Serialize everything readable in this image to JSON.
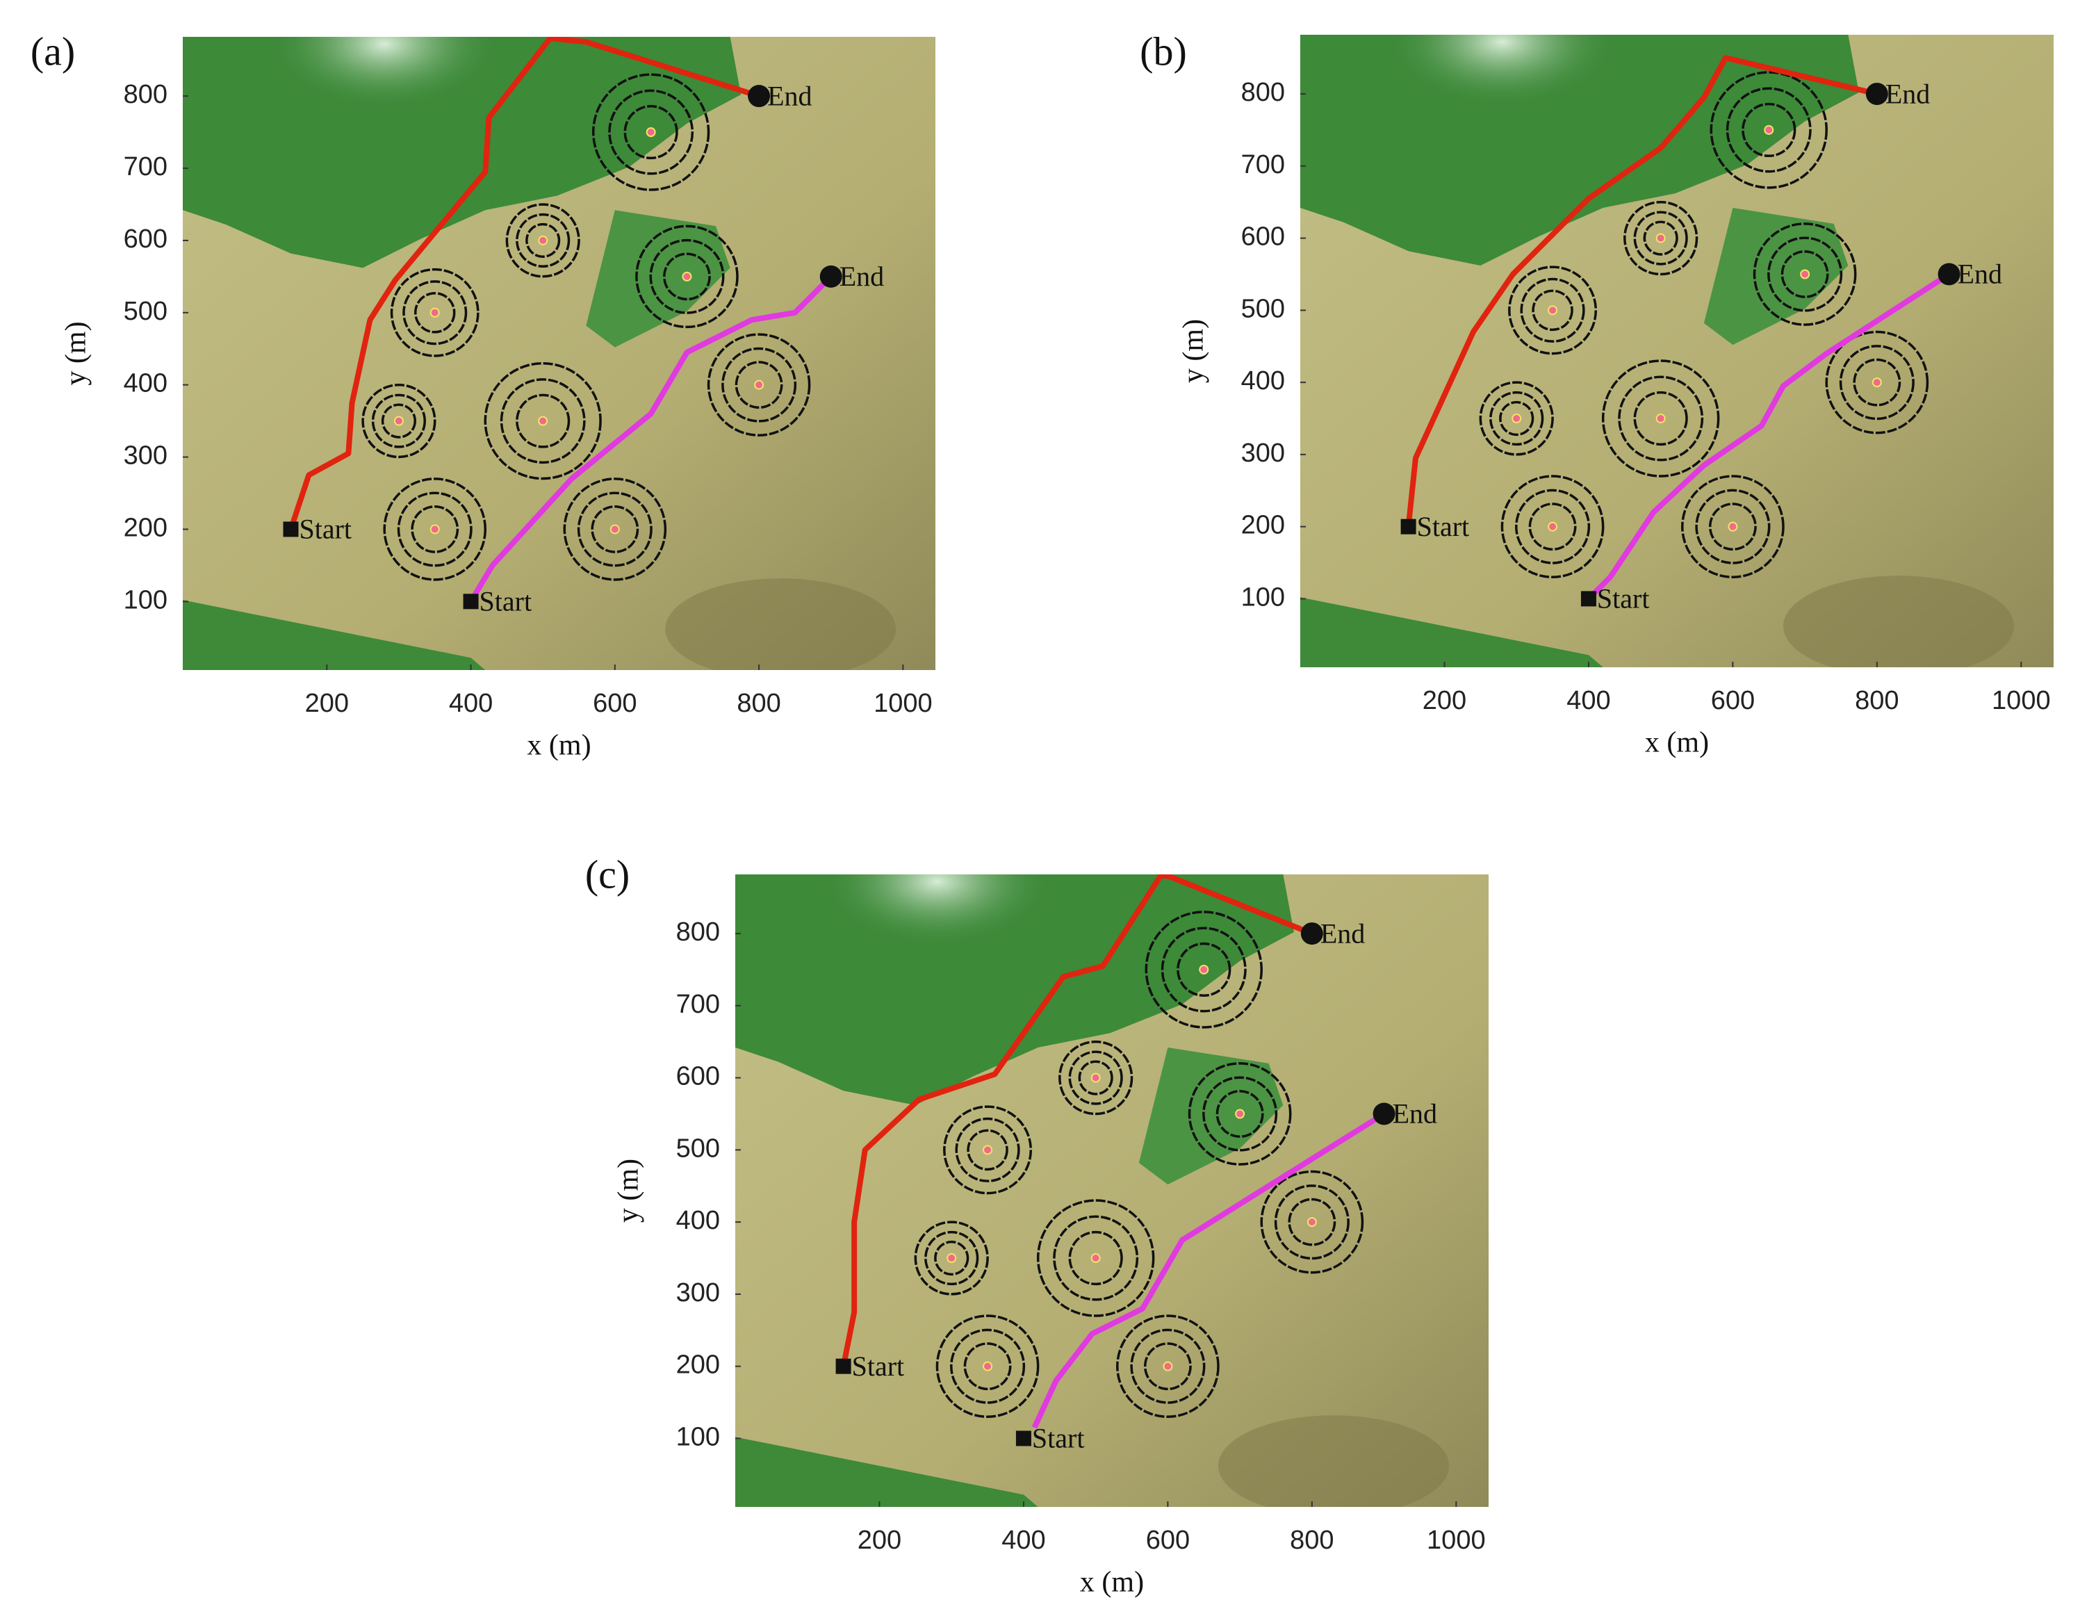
{
  "chart_data": [
    {
      "type": "line",
      "panel_label": "(a)",
      "xlabel": "x (m)",
      "ylabel": "y (m)",
      "xlim": [
        0,
        1045
      ],
      "ylim": [
        5,
        882
      ],
      "xticks": [
        200,
        400,
        600,
        800,
        1000
      ],
      "yticks": [
        100,
        200,
        300,
        400,
        500,
        600,
        700,
        800
      ],
      "threats": {
        "x": [
          650,
          500,
          700,
          350,
          300,
          500,
          800,
          350,
          600
        ],
        "y": [
          750,
          600,
          550,
          500,
          350,
          350,
          400,
          200,
          200
        ],
        "r": [
          80,
          50,
          70,
          60,
          50,
          80,
          70,
          70,
          70
        ]
      },
      "series": [
        {
          "color": "#e0240f",
          "x": [
            150,
            175,
            230,
            235,
            260,
            295,
            420,
            425,
            510,
            560,
            800
          ],
          "values": [
            200,
            275,
            305,
            375,
            490,
            545,
            695,
            770,
            880,
            875,
            800
          ]
        },
        {
          "color": "#e03ae0",
          "x": [
            400,
            430,
            540,
            650,
            700,
            790,
            850,
            900
          ],
          "values": [
            100,
            150,
            270,
            360,
            445,
            490,
            500,
            550
          ]
        }
      ],
      "markers": [
        {
          "label": "Start",
          "shape": "square",
          "x": 150,
          "y": 200
        },
        {
          "label": "End",
          "shape": "circle",
          "x": 800,
          "y": 800
        },
        {
          "label": "Start",
          "shape": "square",
          "x": 400,
          "y": 100
        },
        {
          "label": "End",
          "shape": "circle",
          "x": 900,
          "y": 550
        }
      ]
    },
    {
      "type": "line",
      "panel_label": "(b)",
      "xlabel": "x (m)",
      "ylabel": "y (m)",
      "xlim": [
        0,
        1045
      ],
      "ylim": [
        5,
        882
      ],
      "xticks": [
        200,
        400,
        600,
        800,
        1000
      ],
      "yticks": [
        100,
        200,
        300,
        400,
        500,
        600,
        700,
        800
      ],
      "threats": {
        "x": [
          650,
          500,
          700,
          350,
          300,
          500,
          800,
          350,
          600
        ],
        "y": [
          750,
          600,
          550,
          500,
          350,
          350,
          400,
          200,
          200
        ],
        "r": [
          80,
          50,
          70,
          60,
          50,
          80,
          70,
          70,
          70
        ]
      },
      "series": [
        {
          "color": "#e0240f",
          "x": [
            150,
            160,
            240,
            295,
            400,
            500,
            560,
            590,
            800
          ],
          "values": [
            200,
            295,
            470,
            550,
            655,
            725,
            795,
            850,
            800
          ]
        },
        {
          "color": "#e03ae0",
          "x": [
            400,
            430,
            490,
            560,
            640,
            670,
            730,
            900
          ],
          "values": [
            100,
            130,
            220,
            285,
            340,
            395,
            440,
            550
          ]
        }
      ],
      "markers": [
        {
          "label": "Start",
          "shape": "square",
          "x": 150,
          "y": 200
        },
        {
          "label": "End",
          "shape": "circle",
          "x": 800,
          "y": 800
        },
        {
          "label": "Start",
          "shape": "square",
          "x": 400,
          "y": 100
        },
        {
          "label": "End",
          "shape": "circle",
          "x": 900,
          "y": 550
        }
      ]
    },
    {
      "type": "line",
      "panel_label": "(c)",
      "xlabel": "x (m)",
      "ylabel": "y (m)",
      "xlim": [
        0,
        1045
      ],
      "ylim": [
        5,
        882
      ],
      "xticks": [
        200,
        400,
        600,
        800,
        1000
      ],
      "yticks": [
        100,
        200,
        300,
        400,
        500,
        600,
        700,
        800
      ],
      "threats": {
        "x": [
          650,
          500,
          700,
          350,
          300,
          500,
          800,
          350,
          600
        ],
        "y": [
          750,
          600,
          550,
          500,
          350,
          350,
          400,
          200,
          200
        ],
        "r": [
          80,
          50,
          70,
          60,
          50,
          80,
          70,
          70,
          70
        ]
      },
      "series": [
        {
          "color": "#e0240f",
          "x": [
            150,
            165,
            165,
            180,
            255,
            360,
            455,
            510,
            590,
            600,
            800
          ],
          "values": [
            200,
            275,
            400,
            500,
            570,
            605,
            740,
            755,
            880,
            880,
            800
          ]
        },
        {
          "color": "#e03ae0",
          "x": [
            415,
            445,
            495,
            565,
            620,
            900
          ],
          "values": [
            115,
            180,
            245,
            280,
            375,
            550
          ]
        }
      ],
      "markers": [
        {
          "label": "Start",
          "shape": "square",
          "x": 150,
          "y": 200
        },
        {
          "label": "End",
          "shape": "circle",
          "x": 800,
          "y": 800
        },
        {
          "label": "Start",
          "shape": "square",
          "x": 400,
          "y": 100
        },
        {
          "label": "End",
          "shape": "circle",
          "x": 900,
          "y": 550
        }
      ]
    }
  ]
}
